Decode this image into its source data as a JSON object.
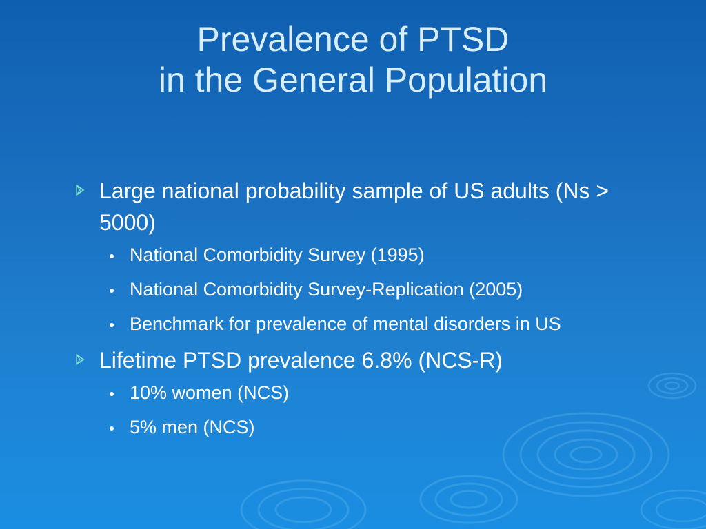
{
  "slide": {
    "title_lines": [
      "Prevalence of PTSD",
      "in the General Population"
    ],
    "bullets": [
      {
        "text": "Large national probability sample of US adults (Ns > 5000)",
        "subs": [
          "National Comorbidity Survey (1995)",
          "National Comorbidity Survey-Replication (2005)",
          "Benchmark for prevalence of mental disorders in US"
        ]
      },
      {
        "text": "Lifetime PTSD prevalence 6.8% (NCS-R)",
        "subs": [
          "10% women (NCS)",
          "5% men (NCS)"
        ]
      }
    ]
  },
  "icons": {
    "bullet_level1": "chevron-right-icon",
    "bullet_level2": "dot-icon",
    "background": "water-ripple-decoration"
  },
  "colors": {
    "background_top": "#0f5fb0",
    "background_bottom": "#1a8ee2",
    "title": "#d8eef8",
    "body_text": "#ffffff",
    "chevron": "#7fe0d0"
  }
}
